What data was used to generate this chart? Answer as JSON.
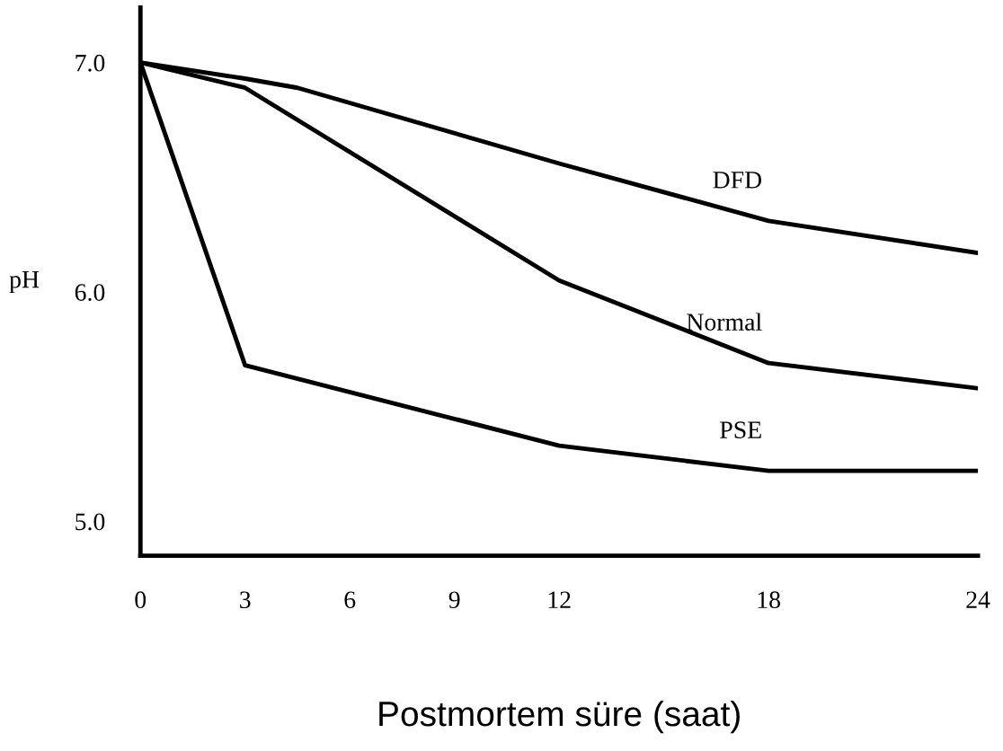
{
  "chart_data": {
    "type": "line",
    "xlabel": "Postmortem süre (saat)",
    "ylabel": "pH",
    "xlim": [
      0,
      24
    ],
    "ylim": [
      4.85,
      7.24
    ],
    "xticks": [
      0,
      3,
      6,
      9,
      12,
      18,
      24
    ],
    "yticks": [
      {
        "value": 5,
        "label": "5.0"
      },
      {
        "value": 6,
        "label": "6.0"
      },
      {
        "value": 7,
        "label": "7.0"
      }
    ],
    "grid": false,
    "legend": false,
    "marker": "none",
    "line_style": "solid",
    "series": [
      {
        "name": "DFD",
        "color": "#000000",
        "x": [
          0,
          3,
          4.5,
          12,
          18,
          24
        ],
        "values": [
          7.0,
          6.93,
          6.89,
          6.56,
          6.31,
          6.17
        ]
      },
      {
        "name": "Normal",
        "color": "#000000",
        "x": [
          0,
          3,
          12,
          18,
          24
        ],
        "values": [
          7.0,
          6.89,
          6.05,
          5.69,
          5.58
        ]
      },
      {
        "name": "PSE",
        "color": "#000000",
        "x": [
          0,
          3,
          12,
          18,
          24
        ],
        "values": [
          7.0,
          5.68,
          5.33,
          5.22,
          5.22
        ]
      }
    ]
  }
}
